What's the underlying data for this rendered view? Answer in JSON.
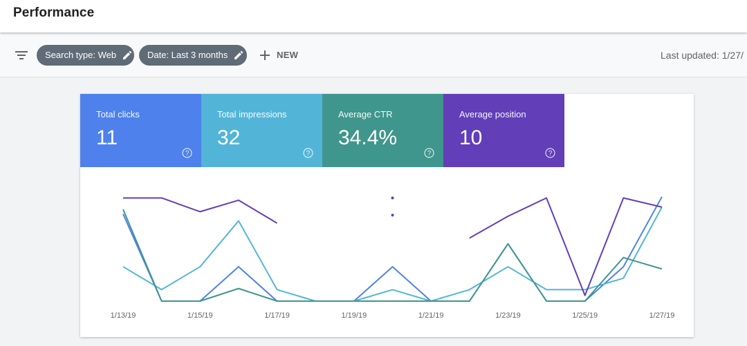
{
  "header": {
    "title": "Performance"
  },
  "toolbar": {
    "filter_icon": "filter-list-icon",
    "chips": [
      {
        "label": "Search type: Web",
        "icon": "pencil-icon"
      },
      {
        "label": "Date: Last 3 months",
        "icon": "pencil-icon"
      }
    ],
    "new_label": "NEW",
    "new_icon": "plus-icon",
    "last_updated": "Last updated: 1/27/"
  },
  "metrics": [
    {
      "label": "Total clicks",
      "value": "11",
      "color": "#4e81ec",
      "help_icon": "help-icon"
    },
    {
      "label": "Total impressions",
      "value": "32",
      "color": "#52b5d8",
      "help_icon": "help-icon"
    },
    {
      "label": "Average CTR",
      "value": "34.4%",
      "color": "#3f968c",
      "help_icon": "help-icon"
    },
    {
      "label": "Average position",
      "value": "10",
      "color": "#623eb8",
      "help_icon": "help-icon"
    }
  ],
  "chart_data": {
    "type": "line",
    "x": [
      "1/13/19",
      "1/14/19",
      "1/15/19",
      "1/16/19",
      "1/17/19",
      "1/18/19",
      "1/19/19",
      "1/20/19",
      "1/21/19",
      "1/22/19",
      "1/23/19",
      "1/24/19",
      "1/25/19",
      "1/26/19",
      "1/27/19"
    ],
    "xticks": [
      "1/13/19",
      "1/15/19",
      "1/17/19",
      "1/19/19",
      "1/21/19",
      "1/23/19",
      "1/25/19",
      "1/27/19"
    ],
    "ylim": [
      0,
      1
    ],
    "grid": false,
    "legend": "none",
    "series": [
      {
        "color": "#4e81ec",
        "values": [
          0.76,
          0.0,
          0.0,
          0.3,
          0.0,
          0.0,
          0.0,
          0.3,
          0.0,
          0.0,
          0.5,
          0.0,
          0.0,
          0.3,
          0.91
        ]
      },
      {
        "color": "#52b5d8",
        "values": [
          0.3,
          0.1,
          0.3,
          0.7,
          0.1,
          0.0,
          0.0,
          0.1,
          0.0,
          0.1,
          0.3,
          0.1,
          0.1,
          0.2,
          0.82
        ]
      },
      {
        "color": "#3f968c",
        "values": [
          0.8,
          0.0,
          0.0,
          0.11,
          0.0,
          0.0,
          0.0,
          0.0,
          0.0,
          0.0,
          0.5,
          0.0,
          0.0,
          0.38,
          0.28
        ]
      },
      {
        "color": "#623eb8",
        "values": [
          0.9,
          0.9,
          0.78,
          0.88,
          0.68,
          null,
          null,
          null,
          null,
          0.55,
          0.74,
          0.9,
          0.05,
          0.9,
          0.82
        ]
      }
    ],
    "isolated_points": [
      {
        "series": 3,
        "x": "1/20/19",
        "y": 0.9
      },
      {
        "series": 3,
        "x": "1/20/19",
        "y": 0.75
      }
    ]
  }
}
